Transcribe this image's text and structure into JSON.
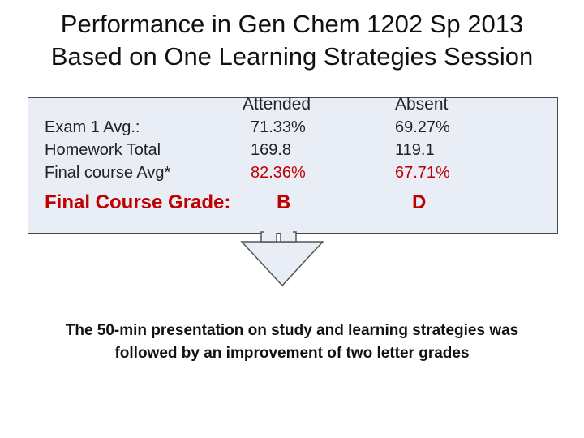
{
  "title": {
    "line1": "Performance in Gen Chem 1202 Sp 2013",
    "line2": "Based on One Learning Strategies Session"
  },
  "table": {
    "row_labels": [
      "Exam 1 Avg.:",
      "Homework Total",
      "Final course Avg*"
    ],
    "grade_label": "Final Course Grade:",
    "attended": {
      "header": "Attended",
      "values": [
        "71.33%",
        "169.8",
        "82.36%"
      ],
      "grade": "B"
    },
    "absent": {
      "header": "Absent",
      "values": [
        "69.27%",
        "119.1",
        "67.71%"
      ],
      "grade": "D"
    }
  },
  "footer": {
    "line1": "The 50-min presentation on study and learning strategies was",
    "line2": "followed by an improvement of two letter grades"
  },
  "colors": {
    "box_fill": "#e9eef6",
    "grade_red": "#c00000",
    "arrow_fill": "#e9eef6"
  },
  "icons": [
    "down-arrow-callout"
  ]
}
